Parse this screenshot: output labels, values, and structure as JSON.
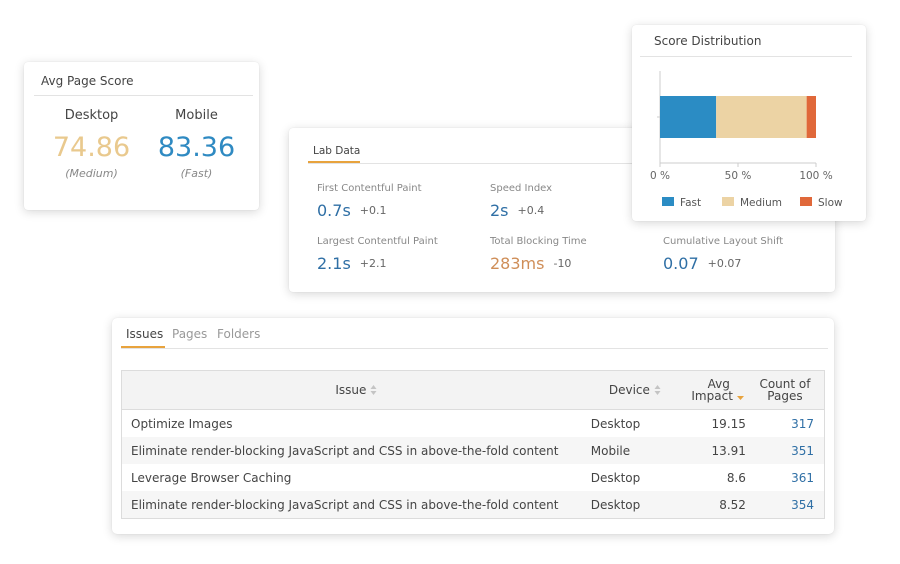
{
  "avg_score": {
    "title": "Avg Page Score",
    "desktop": {
      "label": "Desktop",
      "value": "74.86",
      "rating": "(Medium)",
      "color": "#e9c98e"
    },
    "mobile": {
      "label": "Mobile",
      "value": "83.36",
      "rating": "(Fast)",
      "color": "#2f8ac2"
    }
  },
  "lab_data": {
    "tab_label": "Lab Data",
    "metrics": [
      {
        "label": "First Contentful Paint",
        "value": "0.7s",
        "delta": "+0.1"
      },
      {
        "label": "Speed Index",
        "value": "2s",
        "delta": "+0.4"
      },
      {
        "label": "Largest Contentful Paint",
        "value": "2.1s",
        "delta": "+2.1"
      },
      {
        "label": "Total Blocking Time",
        "value": "283ms",
        "delta": "-10"
      },
      {
        "label": "Cumulative Layout Shift",
        "value": "0.07",
        "delta": "+0.07"
      }
    ]
  },
  "score_distribution": {
    "title": "Score Distribution",
    "chart_data": {
      "type": "bar",
      "orientation": "horizontal-stacked",
      "categories": [
        ""
      ],
      "series": [
        {
          "name": "Fast",
          "values": [
            36
          ],
          "color": "#2b8cc4"
        },
        {
          "name": "Medium",
          "values": [
            58
          ],
          "color": "#ecd3a4"
        },
        {
          "name": "Slow",
          "values": [
            6
          ],
          "color": "#e0683a"
        }
      ],
      "x_ticks": [
        "0 %",
        "50 %",
        "100 %"
      ],
      "xlim": [
        0,
        100
      ],
      "legend": "bottom",
      "grid": false
    }
  },
  "issues": {
    "tabs": [
      "Issues",
      "Pages",
      "Folders"
    ],
    "active_tab": "Issues",
    "columns": {
      "issue": "Issue",
      "device": "Device",
      "impact_line1": "Avg",
      "impact_line2": "Impact",
      "count_line1": "Count of",
      "count_line2": "Pages"
    },
    "sort_color": "#e8a33d",
    "rows": [
      {
        "issue": "Optimize Images",
        "device": "Desktop",
        "impact": "19.15",
        "count": "317"
      },
      {
        "issue": "Eliminate render-blocking JavaScript and CSS in above-the-fold content",
        "device": "Mobile",
        "impact": "13.91",
        "count": "351"
      },
      {
        "issue": "Leverage Browser Caching",
        "device": "Desktop",
        "impact": "8.6",
        "count": "361"
      },
      {
        "issue": "Eliminate render-blocking JavaScript and CSS in above-the-fold content",
        "device": "Desktop",
        "impact": "8.52",
        "count": "354"
      }
    ]
  }
}
